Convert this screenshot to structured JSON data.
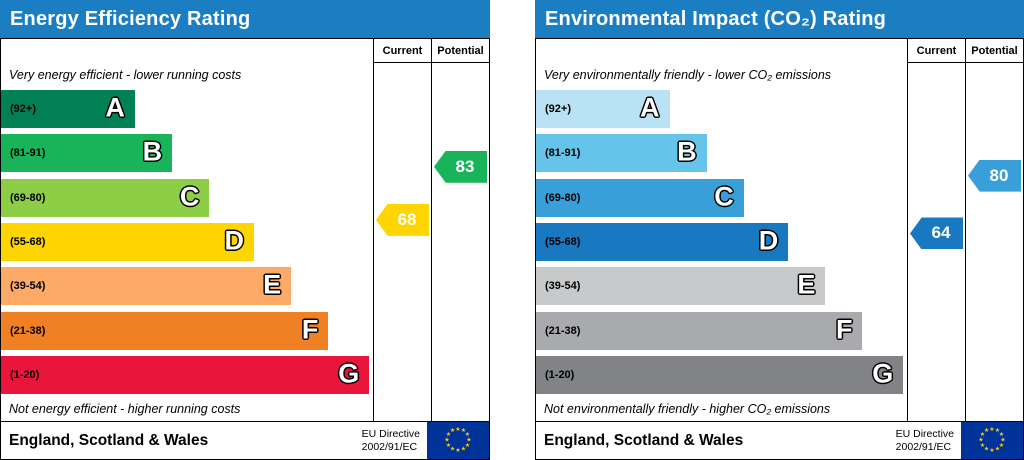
{
  "colors": {
    "header_bg": "#1b7ec2",
    "eu_flag_bg": "#003399",
    "eu_star": "#ffcc00"
  },
  "chart_data": [
    {
      "type": "epc-rating-bar",
      "title": "Energy Efficiency Rating",
      "top_caption": "Very energy efficient - lower running costs",
      "bottom_caption": "Not energy efficient - higher running costs",
      "col_current": "Current",
      "col_potential": "Potential",
      "bands": [
        {
          "letter": "A",
          "label": "(92+)",
          "lo": 92,
          "hi": 100,
          "color": "#008054",
          "width_pct": 36
        },
        {
          "letter": "B",
          "label": "(81-91)",
          "lo": 81,
          "hi": 91,
          "color": "#19b459",
          "width_pct": 46
        },
        {
          "letter": "C",
          "label": "(69-80)",
          "lo": 69,
          "hi": 80,
          "color": "#8dce46",
          "width_pct": 56
        },
        {
          "letter": "D",
          "label": "(55-68)",
          "lo": 55,
          "hi": 68,
          "color": "#ffd500",
          "width_pct": 68
        },
        {
          "letter": "E",
          "label": "(39-54)",
          "lo": 39,
          "hi": 54,
          "color": "#fcaa65",
          "width_pct": 78
        },
        {
          "letter": "F",
          "label": "(21-38)",
          "lo": 21,
          "hi": 38,
          "color": "#ef8023",
          "width_pct": 88
        },
        {
          "letter": "G",
          "label": "(1-20)",
          "lo": 1,
          "hi": 20,
          "color": "#e9153b",
          "width_pct": 99
        }
      ],
      "current": {
        "value": 68,
        "color": "#ffd500"
      },
      "potential": {
        "value": 83,
        "color": "#19b459"
      },
      "footer_region": "England, Scotland & Wales",
      "footer_directive": [
        "EU Directive",
        "2002/91/EC"
      ]
    },
    {
      "type": "epc-rating-bar",
      "title": "Environmental Impact (CO₂) Rating",
      "top_caption": "Very environmentally friendly - lower CO₂ emissions",
      "bottom_caption": "Not environmentally friendly - higher CO₂ emissions",
      "col_current": "Current",
      "col_potential": "Potential",
      "bands": [
        {
          "letter": "A",
          "label": "(92+)",
          "lo": 92,
          "hi": 100,
          "color": "#b9e2f4",
          "width_pct": 36
        },
        {
          "letter": "B",
          "label": "(81-91)",
          "lo": 81,
          "hi": 91,
          "color": "#66c3ea",
          "width_pct": 46
        },
        {
          "letter": "C",
          "label": "(69-80)",
          "lo": 69,
          "hi": 80,
          "color": "#389fd9",
          "width_pct": 56
        },
        {
          "letter": "D",
          "label": "(55-68)",
          "lo": 55,
          "hi": 68,
          "color": "#1879c0",
          "width_pct": 68
        },
        {
          "letter": "E",
          "label": "(39-54)",
          "lo": 39,
          "hi": 54,
          "color": "#c8c9ca",
          "width_pct": 78
        },
        {
          "letter": "F",
          "label": "(21-38)",
          "lo": 21,
          "hi": 38,
          "color": "#a9aaae",
          "width_pct": 88
        },
        {
          "letter": "G",
          "label": "(1-20)",
          "lo": 1,
          "hi": 20,
          "color": "#818386",
          "width_pct": 99
        }
      ],
      "current": {
        "value": 64,
        "color": "#1879c0"
      },
      "potential": {
        "value": 80,
        "color": "#389fd9"
      },
      "footer_region": "England, Scotland & Wales",
      "footer_directive": [
        "EU Directive",
        "2002/91/EC"
      ]
    }
  ]
}
